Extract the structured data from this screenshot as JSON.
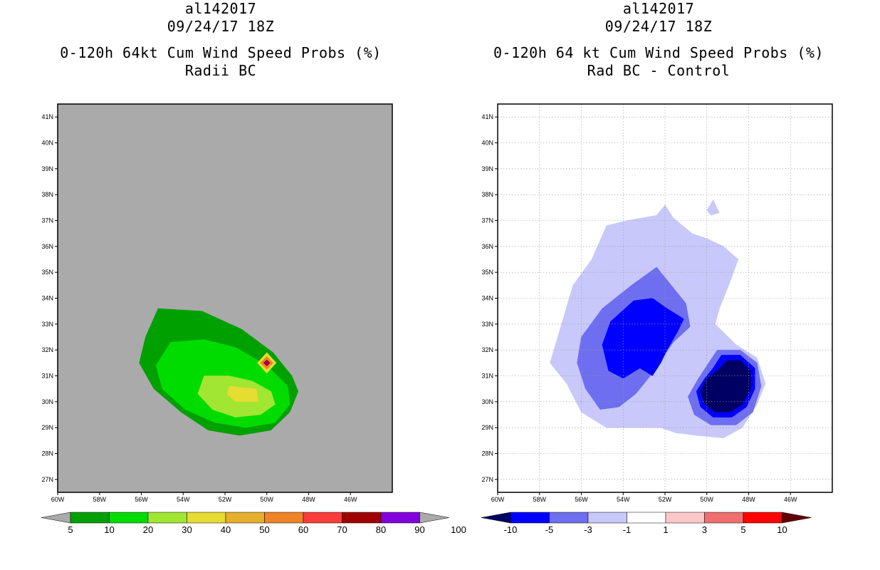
{
  "chart_data": [
    {
      "type": "heatmap",
      "storm_id": "al142017",
      "date": "09/24/17 18Z",
      "title": "0-120h 64kt Cum Wind Speed Probs (%)",
      "subtitle": "Radii BC",
      "units": "%",
      "xlim": [
        -60,
        -44
      ],
      "ylim": [
        26.5,
        41.5
      ],
      "x_ticks": [
        "60W",
        "58W",
        "56W",
        "54W",
        "52W",
        "50W",
        "48W",
        "46W"
      ],
      "y_ticks": [
        "27N",
        "28N",
        "29N",
        "30N",
        "31N",
        "32N",
        "33N",
        "34N",
        "35N",
        "36N",
        "37N",
        "38N",
        "39N",
        "40N",
        "41N"
      ],
      "grid": false,
      "background": "#aaaaaa",
      "colorbar": {
        "labels": [
          "5",
          "10",
          "20",
          "30",
          "40",
          "50",
          "60",
          "70",
          "80",
          "90",
          "100"
        ],
        "colors": [
          "#00a000",
          "#00dc00",
          "#a0e632",
          "#e6dc32",
          "#e6af2d",
          "#f08228",
          "#fa3c3c",
          "#a00000",
          "#8200dc"
        ],
        "end_color": "#aaaaaa"
      },
      "regions": [
        {
          "level": "5-10",
          "color": "#00a000",
          "polygon": [
            [
              -55.2,
              33.6
            ],
            [
              -53.1,
              33.5
            ],
            [
              -51.2,
              32.8
            ],
            [
              -49.7,
              31.9
            ],
            [
              -48.8,
              31.0
            ],
            [
              -48.5,
              30.4
            ],
            [
              -48.9,
              29.6
            ],
            [
              -49.8,
              28.9
            ],
            [
              -51.3,
              28.7
            ],
            [
              -52.8,
              28.9
            ],
            [
              -54.1,
              29.6
            ],
            [
              -55.4,
              30.5
            ],
            [
              -56.1,
              31.5
            ],
            [
              -55.8,
              32.5
            ]
          ]
        },
        {
          "level": "10-20",
          "color": "#00dc00",
          "polygon": [
            [
              -54.6,
              32.3
            ],
            [
              -53.0,
              32.4
            ],
            [
              -51.5,
              32.1
            ],
            [
              -50.0,
              31.4
            ],
            [
              -49.0,
              30.6
            ],
            [
              -48.9,
              29.9
            ],
            [
              -49.6,
              29.2
            ],
            [
              -51.0,
              29.0
            ],
            [
              -52.5,
              29.2
            ],
            [
              -53.9,
              29.7
            ],
            [
              -55.0,
              30.5
            ],
            [
              -55.3,
              31.4
            ]
          ]
        },
        {
          "level": "20-30",
          "color": "#a0e632",
          "polygon": [
            [
              -53.0,
              31.0
            ],
            [
              -51.8,
              31.0
            ],
            [
              -50.7,
              30.8
            ],
            [
              -49.8,
              30.4
            ],
            [
              -49.6,
              29.9
            ],
            [
              -50.3,
              29.5
            ],
            [
              -51.5,
              29.4
            ],
            [
              -52.6,
              29.7
            ],
            [
              -53.3,
              30.3
            ]
          ]
        },
        {
          "level": "30-40",
          "color": "#e6dc32",
          "polygon": [
            [
              -51.8,
              30.6
            ],
            [
              -50.5,
              30.5
            ],
            [
              -50.4,
              30.0
            ],
            [
              -51.5,
              30.0
            ],
            [
              -51.9,
              30.3
            ]
          ]
        },
        {
          "level": "30-40",
          "color": "#e6dc32",
          "polygon": [
            [
              -50.0,
              31.9
            ],
            [
              -49.55,
              31.5
            ],
            [
              -50.0,
              31.1
            ],
            [
              -50.45,
              31.5
            ]
          ]
        },
        {
          "level": "50-60",
          "color": "#f08228",
          "polygon": [
            [
              -50.0,
              31.75
            ],
            [
              -49.7,
              31.5
            ],
            [
              -50.0,
              31.25
            ],
            [
              -50.3,
              31.5
            ]
          ]
        },
        {
          "level": "70-80",
          "color": "#a00000",
          "polygon": [
            [
              -50.0,
              31.62
            ],
            [
              -49.85,
              31.5
            ],
            [
              -50.0,
              31.38
            ],
            [
              -50.15,
              31.5
            ]
          ]
        },
        {
          "level": "90-100",
          "color": "#8200dc",
          "polygon": [
            [
              -50.0,
              31.55
            ],
            [
              -49.93,
              31.5
            ],
            [
              -50.0,
              31.45
            ],
            [
              -50.07,
              31.5
            ]
          ]
        }
      ]
    },
    {
      "type": "heatmap",
      "storm_id": "al142017",
      "date": "09/24/17 18Z",
      "title": "0-120h 64 kt Cum Wind Speed Probs (%)",
      "subtitle": "Rad BC - Control",
      "units": "%",
      "xlim": [
        -60,
        -44
      ],
      "ylim": [
        26.5,
        41.5
      ],
      "x_ticks": [
        "60W",
        "58W",
        "56W",
        "54W",
        "52W",
        "50W",
        "48W",
        "46W"
      ],
      "y_ticks": [
        "27N",
        "28N",
        "29N",
        "30N",
        "31N",
        "32N",
        "33N",
        "34N",
        "35N",
        "36N",
        "37N",
        "38N",
        "39N",
        "40N",
        "41N"
      ],
      "grid": true,
      "background": "#ffffff",
      "colorbar": {
        "labels": [
          "-10",
          "-5",
          "-3",
          "-1",
          "1",
          "3",
          "5",
          "10"
        ],
        "colors": [
          "#0000ff",
          "#6e6ef0",
          "#c8c8fa",
          "#ffffff",
          "#fac8c8",
          "#f06e6e",
          "#ff0000"
        ],
        "low_end_color": "#000064",
        "high_end_color": "#640000"
      },
      "regions": [
        {
          "level": "-3 to -1",
          "color": "#c8c8fa",
          "polygon": [
            [
              -57.2,
              32.3
            ],
            [
              -56.4,
              34.5
            ],
            [
              -55.5,
              35.5
            ],
            [
              -54.8,
              36.8
            ],
            [
              -53.8,
              37.0
            ],
            [
              -52.4,
              37.2
            ],
            [
              -52.0,
              37.6
            ],
            [
              -51.6,
              37.1
            ],
            [
              -50.7,
              36.5
            ],
            [
              -50.0,
              36.3
            ],
            [
              -49.2,
              36.0
            ],
            [
              -48.5,
              35.5
            ],
            [
              -48.9,
              34.6
            ],
            [
              -49.4,
              33.6
            ],
            [
              -49.6,
              33.0
            ],
            [
              -48.6,
              32.2
            ],
            [
              -47.6,
              31.7
            ],
            [
              -47.2,
              30.7
            ],
            [
              -47.6,
              29.9
            ],
            [
              -48.3,
              29.0
            ],
            [
              -49.2,
              28.6
            ],
            [
              -50.5,
              28.7
            ],
            [
              -51.5,
              28.8
            ],
            [
              -52.2,
              29.0
            ],
            [
              -53.3,
              29.0
            ],
            [
              -54.8,
              29.0
            ],
            [
              -56.0,
              29.6
            ],
            [
              -56.7,
              30.7
            ],
            [
              -57.5,
              31.5
            ]
          ]
        },
        {
          "level": "-3 to -1",
          "color": "#c8c8fa",
          "polygon": [
            [
              -49.7,
              37.8
            ],
            [
              -49.4,
              37.3
            ],
            [
              -49.8,
              37.2
            ],
            [
              -50.0,
              37.4
            ]
          ]
        },
        {
          "level": "-5 to -3",
          "color": "#6e6ef0",
          "polygon": [
            [
              -55.0,
              33.6
            ],
            [
              -53.6,
              34.5
            ],
            [
              -52.4,
              35.2
            ],
            [
              -51.8,
              34.6
            ],
            [
              -51.0,
              33.8
            ],
            [
              -50.8,
              32.9
            ],
            [
              -51.6,
              32.3
            ],
            [
              -52.2,
              31.6
            ],
            [
              -52.6,
              31.1
            ],
            [
              -53.4,
              30.3
            ],
            [
              -54.2,
              29.8
            ],
            [
              -55.1,
              29.7
            ],
            [
              -55.8,
              30.5
            ],
            [
              -56.2,
              31.5
            ],
            [
              -56.0,
              32.5
            ]
          ]
        },
        {
          "level": "-5 to -3",
          "color": "#6e6ef0",
          "polygon": [
            [
              -50.0,
              31.4
            ],
            [
              -49.5,
              32.0
            ],
            [
              -48.4,
              32.0
            ],
            [
              -47.6,
              31.5
            ],
            [
              -47.4,
              30.6
            ],
            [
              -47.8,
              29.6
            ],
            [
              -48.6,
              29.1
            ],
            [
              -49.8,
              29.1
            ],
            [
              -50.6,
              29.5
            ],
            [
              -50.9,
              30.2
            ],
            [
              -50.4,
              30.9
            ]
          ]
        },
        {
          "level": "-10 to -5",
          "color": "#0000ff",
          "polygon": [
            [
              -54.6,
              33.1
            ],
            [
              -53.5,
              33.9
            ],
            [
              -52.6,
              34.0
            ],
            [
              -51.9,
              33.6
            ],
            [
              -51.1,
              33.2
            ],
            [
              -51.4,
              32.7
            ],
            [
              -51.9,
              32.0
            ],
            [
              -52.2,
              31.5
            ],
            [
              -52.6,
              31.0
            ],
            [
              -53.2,
              31.3
            ],
            [
              -54.0,
              30.9
            ],
            [
              -54.7,
              31.2
            ],
            [
              -55.0,
              32.2
            ]
          ]
        },
        {
          "level": "-10 to -5",
          "color": "#0000ff",
          "polygon": [
            [
              -49.7,
              31.3
            ],
            [
              -49.3,
              31.8
            ],
            [
              -48.4,
              31.8
            ],
            [
              -47.7,
              31.3
            ],
            [
              -47.7,
              30.5
            ],
            [
              -48.1,
              29.8
            ],
            [
              -48.8,
              29.4
            ],
            [
              -49.7,
              29.4
            ],
            [
              -50.3,
              29.8
            ],
            [
              -50.5,
              30.4
            ],
            [
              -50.1,
              30.9
            ]
          ]
        },
        {
          "level": "< -10",
          "color": "#000064",
          "polygon": [
            [
              -49.5,
              31.2
            ],
            [
              -49.0,
              31.6
            ],
            [
              -48.4,
              31.6
            ],
            [
              -47.9,
              31.2
            ],
            [
              -47.9,
              30.5
            ],
            [
              -48.3,
              29.9
            ],
            [
              -48.9,
              29.6
            ],
            [
              -49.6,
              29.6
            ],
            [
              -50.1,
              29.9
            ],
            [
              -50.3,
              30.4
            ],
            [
              -50.0,
              30.9
            ]
          ]
        }
      ]
    }
  ]
}
